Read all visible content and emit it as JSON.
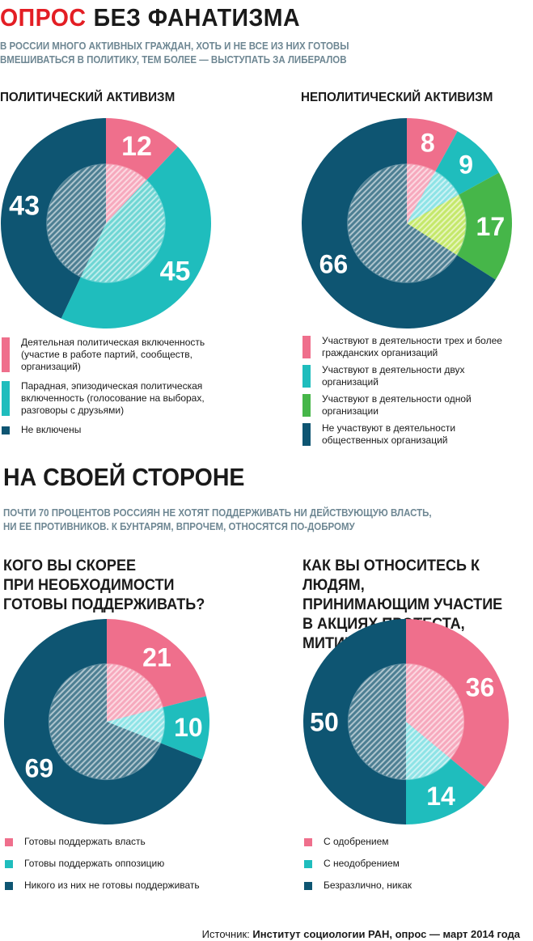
{
  "header": {
    "title_accent": "ОПРОС",
    "title_main": "БЕЗ ФАНАТИЗМА",
    "subtitle_line1": "В РОССИИ МНОГО АКТИВНЫХ ГРАЖДАН, ХОТЬ И НЕ ВСЕ ИЗ НИХ ГОТОВЫ",
    "subtitle_line2": "ВМЕШИВАТЬСЯ В ПОЛИТИКУ, ТЕМ БОЛЕЕ — ВЫСТУПАТЬ ЗА ЛИБЕРАЛОВ"
  },
  "section2": {
    "title": "НА СВОЕЙ СТОРОНЕ",
    "subtitle_line1": "ПОЧТИ 70 ПРОЦЕНТОВ РОССИЯН НЕ ХОТЯТ ПОДДЕРЖИВАТЬ НИ ДЕЙСТВУЮЩУЮ ВЛАСТЬ,",
    "subtitle_line2": "НИ ЕЕ ПРОТИВНИКОВ. К БУНТАРЯМ, ВПРОЧЕМ, ОТНОСЯТСЯ ПО-ДОБРОМУ"
  },
  "chart_data": [
    {
      "type": "pie",
      "title": "ПОЛИТИЧЕСКИЙ АКТИВИЗМ",
      "slices": [
        {
          "label": "Деятельная политическая включенность\n(участие в работе партий, сообществ,\nорганизаций)",
          "value": 12,
          "color": "#ef6f8c",
          "inner": "#f6a9bd"
        },
        {
          "label": "Парадная, эпизодическая политическая\nвключенность (голосование на выборах,\nразговоры с друзьями)",
          "value": 45,
          "color": "#1fbdbd",
          "inner": "#6fd6d4"
        },
        {
          "label": "Не включены",
          "value": 43,
          "color": "#0e5572",
          "inner": "#4d7f93"
        }
      ]
    },
    {
      "type": "pie",
      "title": "НЕПОЛИТИЧЕСКИЙ АКТИВИЗМ",
      "slices": [
        {
          "label": "Участвуют в деятельности трех и более\nгражданских организаций",
          "value": 8,
          "color": "#ef6f8c",
          "inner": "#f6a9bd"
        },
        {
          "label": "Участвуют в деятельности двух\nорганизаций",
          "value": 9,
          "color": "#1fbdbd",
          "inner": "#8ee3e6"
        },
        {
          "label": "Участвуют в деятельности одной\nорганизации",
          "value": 17,
          "color": "#46b649",
          "inner": "#c5e86b"
        },
        {
          "label": "Не участвуют в деятельности\nобщественных организаций",
          "value": 66,
          "color": "#0e5572",
          "inner": "#4d7f93"
        }
      ]
    },
    {
      "type": "pie",
      "title": "КОГО ВЫ СКОРЕЕ\nПРИ НЕОБХОДИМОСТИ\nГОТОВЫ ПОДДЕРЖИВАТЬ?",
      "slices": [
        {
          "label": "Готовы поддержать власть",
          "value": 21,
          "color": "#ef6f8c",
          "inner": "#f6a9bd"
        },
        {
          "label": "Готовы поддержать оппозицию",
          "value": 10,
          "color": "#1fbdbd",
          "inner": "#8ee3e6"
        },
        {
          "label": "Никого из них не готовы поддерживать",
          "value": 69,
          "color": "#0e5572",
          "inner": "#4d7f93"
        }
      ]
    },
    {
      "type": "pie",
      "title": "КАК ВЫ ОТНОСИТЕСЬ К ЛЮДЯМ,\nПРИНИМАЮЩИМ УЧАСТИЕ\nВ АКЦИЯХ ПРОТЕСТА, МИТИНГАХ?",
      "slices": [
        {
          "label": "С одобрением",
          "value": 36,
          "color": "#ef6f8c",
          "inner": "#f6a9bd"
        },
        {
          "label": "С неодобрением",
          "value": 14,
          "color": "#1fbdbd",
          "inner": "#8ee3e6"
        },
        {
          "label": "Безразлично, никак",
          "value": 50,
          "color": "#0e5572",
          "inner": "#4d7f93"
        }
      ]
    }
  ],
  "source": {
    "prefix": "Источник: ",
    "text": "Институт социологии РАН, опрос — март 2014 года"
  }
}
